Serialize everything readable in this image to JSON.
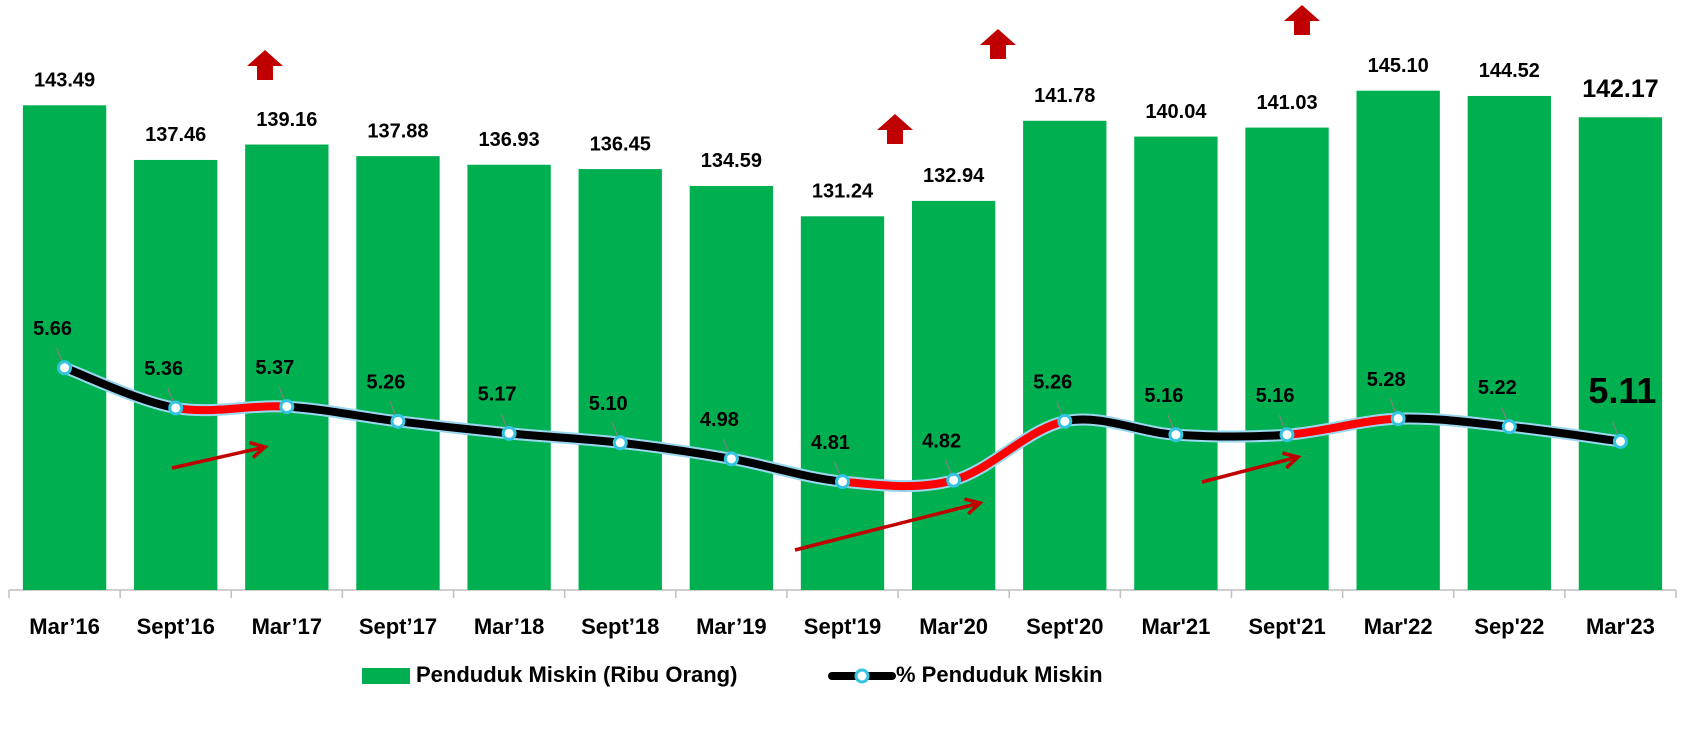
{
  "chart_data": {
    "type": "bar_line",
    "categories": [
      "Mar’16",
      "Sept’16",
      "Mar’17",
      "Sept’17",
      "Mar’18",
      "Sept’18",
      "Mar’19",
      "Sept'19",
      "Mar'20",
      "Sept'20",
      "Mar'21",
      "Sept'21",
      "Mar'22",
      "Sep'22",
      "Mar'23"
    ],
    "series": [
      {
        "name": "Penduduk Miskin (Ribu Orang)",
        "type": "bar",
        "color": "#00b050",
        "values": [
          143.49,
          137.46,
          139.16,
          137.88,
          136.93,
          136.45,
          134.59,
          131.24,
          132.94,
          141.78,
          140.04,
          141.03,
          145.1,
          144.52,
          142.17
        ],
        "value_labels": [
          "143.49",
          "137.46",
          "139.16",
          "137.88",
          "136.93",
          "136.45",
          "134.59",
          "131.24",
          "132.94",
          "141.78",
          "140.04",
          "141.03",
          "145.10",
          "144.52",
          "142.17"
        ]
      },
      {
        "name": "% Penduduk Miskin",
        "type": "line",
        "axis": "y2",
        "color": "#000000",
        "highlight": {
          "color": "#ff0000",
          "segments": [
            1,
            7,
            8,
            11
          ]
        },
        "values": [
          5.66,
          5.36,
          5.37,
          5.26,
          5.17,
          5.1,
          4.98,
          4.81,
          4.82,
          5.26,
          5.16,
          5.16,
          5.28,
          5.22,
          5.11
        ],
        "value_labels": [
          "5.66",
          "5.36",
          "5.37",
          "5.26",
          "5.17",
          "5.10",
          "4.98",
          "4.81",
          "4.82",
          "5.26",
          "5.16",
          "5.16",
          "5.28",
          "5.22",
          "5.11"
        ]
      }
    ],
    "ylim": [
      90,
      155
    ],
    "y2lim": [
      4,
      8.4
    ],
    "legend": "bottom"
  }
}
